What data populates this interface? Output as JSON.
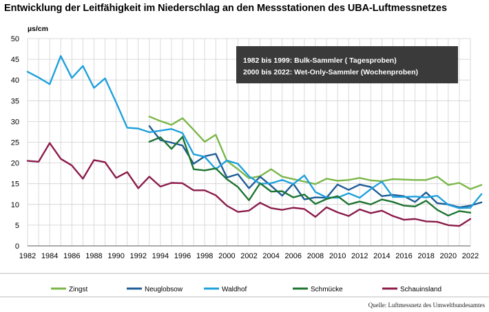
{
  "page": {
    "title": "Entwicklung der Leitfähigkeit im Niederschlag an den Messstationen des UBA-Luftmessnetzes",
    "source": "Quelle: Luftmessnetz des Umweltbundesamtes"
  },
  "chart_data": {
    "type": "line",
    "title": "Entwicklung der Leitfähigkeit im Niederschlag an den Messstationen des UBA-Luftmessnetzes",
    "ylabel": "µs/cm",
    "xlabel": "",
    "xlim": [
      1982,
      2022
    ],
    "ylim": [
      0,
      50
    ],
    "x_ticks": [
      1982,
      1984,
      1986,
      1988,
      1990,
      1992,
      1994,
      1996,
      1998,
      2000,
      2002,
      2004,
      2006,
      2008,
      2010,
      2012,
      2014,
      2016,
      2018,
      2020,
      2022
    ],
    "y_ticks": [
      0,
      5,
      10,
      15,
      20,
      25,
      30,
      35,
      40,
      45,
      50
    ],
    "grid": true,
    "legend_position": "bottom",
    "annotation": {
      "lines": [
        "1982 bis 1999: Bulk-Sammler ( Tagesproben)",
        "2000 bis 2022: Wet-Only-Sammler (Wochenproben)"
      ],
      "background": "#3a3a3a"
    },
    "series": [
      {
        "name": "Zingst",
        "color": "#7ab648",
        "start_year": 1993,
        "values": [
          31.2,
          30.1,
          29.2,
          30.8,
          28.0,
          25.1,
          26.8,
          20.5,
          18.5,
          16.3,
          16.8,
          18.5,
          16.7,
          16.1,
          15.5,
          14.9,
          16.2,
          15.7,
          15.9,
          16.4,
          15.8,
          15.6,
          16.1,
          16.0,
          15.9,
          15.9,
          16.7,
          14.7,
          15.2,
          13.7,
          14.7
        ]
      },
      {
        "name": "Neuglobsow",
        "color": "#1d5c96",
        "start_year": 1993,
        "values": [
          28.9,
          25.5,
          24.9,
          24.2,
          19.8,
          21.6,
          22.2,
          16.5,
          17.3,
          13.9,
          16.7,
          14.5,
          12.1,
          15.0,
          11.2,
          11.7,
          11.6,
          14.8,
          13.5,
          14.8,
          14.2,
          12.0,
          12.3,
          12.0,
          10.6,
          12.9,
          10.3,
          10.0,
          9.3,
          9.7,
          10.5
        ]
      },
      {
        "name": "Waldhof",
        "color": "#1ea0dc",
        "start_year": 1982,
        "values": [
          42.0,
          40.6,
          39.0,
          45.8,
          40.5,
          43.4,
          38.1,
          40.4,
          34.6,
          28.5,
          28.3,
          27.4,
          27.8,
          28.2,
          27.2,
          22.1,
          21.5,
          18.5,
          20.6,
          19.8,
          16.8,
          15.0,
          15.1,
          15.9,
          14.9,
          17.0,
          13.0,
          11.7,
          11.6,
          12.7,
          11.6,
          13.7,
          15.5,
          11.8,
          11.8,
          11.9,
          11.7,
          12.1,
          9.9,
          9.1,
          9.2,
          12.5
        ]
      },
      {
        "name": "Schmücke",
        "color": "#1c7430",
        "start_year": 1993,
        "values": [
          25.1,
          26.2,
          23.4,
          26.3,
          18.5,
          18.2,
          18.7,
          16.1,
          14.2,
          11.0,
          15.1,
          13.1,
          13.2,
          11.7,
          12.4,
          10.1,
          11.3,
          12.0,
          10.0,
          10.7,
          10.0,
          11.2,
          10.6,
          9.7,
          9.5,
          10.9,
          8.7,
          7.3,
          8.4,
          8.0
        ]
      },
      {
        "name": "Schauinsland",
        "color": "#8b1a4a",
        "start_year": 1982,
        "values": [
          20.5,
          20.3,
          24.8,
          21.0,
          19.4,
          16.2,
          20.7,
          20.2,
          16.4,
          17.8,
          13.9,
          16.7,
          14.3,
          15.2,
          15.1,
          13.4,
          13.4,
          12.2,
          9.7,
          8.2,
          8.5,
          10.4,
          9.1,
          8.7,
          9.2,
          8.9,
          7.0,
          9.3,
          8.1,
          7.2,
          8.8,
          7.9,
          8.5,
          7.2,
          6.3,
          6.5,
          5.9,
          5.8,
          5.0,
          4.8,
          6.5
        ]
      }
    ]
  }
}
